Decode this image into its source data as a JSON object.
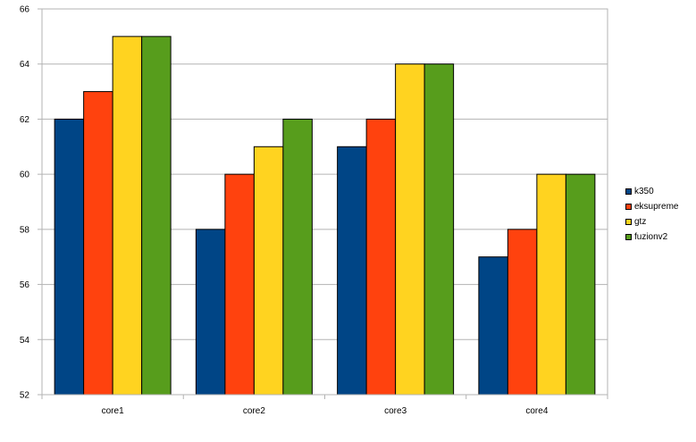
{
  "chart_data": {
    "type": "bar",
    "title": "",
    "xlabel": "",
    "ylabel": "",
    "categories": [
      "core1",
      "core2",
      "core3",
      "core4"
    ],
    "series": [
      {
        "name": "k350",
        "color": "#004586",
        "values": [
          62,
          58,
          61,
          57
        ]
      },
      {
        "name": "eksupreme",
        "color": "#FF420E",
        "values": [
          63,
          60,
          62,
          58
        ]
      },
      {
        "name": "gtz",
        "color": "#FFD320",
        "values": [
          65,
          61,
          64,
          60
        ]
      },
      {
        "name": "fuzionv2",
        "color": "#579D1C",
        "values": [
          65,
          62,
          64,
          60
        ]
      }
    ],
    "ylim": [
      52,
      66
    ],
    "yticks": [
      52,
      54,
      56,
      58,
      60,
      62,
      64,
      66
    ],
    "grid": true,
    "legend_position": "right"
  }
}
